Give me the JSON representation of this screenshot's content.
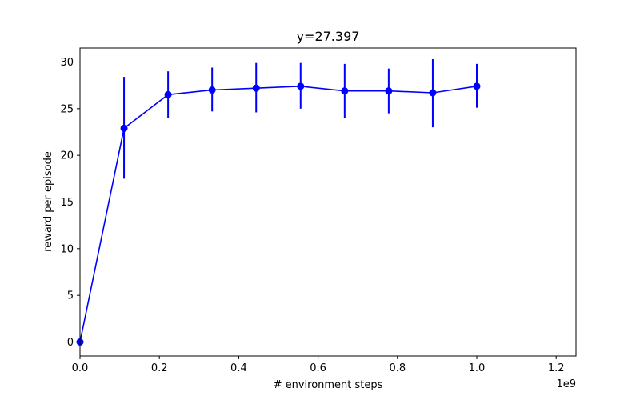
{
  "chart_data": {
    "type": "line",
    "title": "y=27.397",
    "xlabel": "# environment steps",
    "ylabel": "reward per episode",
    "x_offset_label": "1e9",
    "xlim": [
      0,
      1.25
    ],
    "ylim": [
      -1.5,
      31.5
    ],
    "x_ticks": [
      0.0,
      0.2,
      0.4,
      0.6,
      0.8,
      1.0,
      1.2
    ],
    "x_tick_labels": [
      "0.0",
      "0.2",
      "0.4",
      "0.6",
      "0.8",
      "1.0",
      "1.2"
    ],
    "y_ticks": [
      0,
      5,
      10,
      15,
      20,
      25,
      30
    ],
    "y_tick_labels": [
      "0",
      "5",
      "10",
      "15",
      "20",
      "25",
      "30"
    ],
    "grid": false,
    "color": "#0000ff",
    "series": [
      {
        "x": [
          0.0,
          0.111,
          0.222,
          0.333,
          0.444,
          0.556,
          0.667,
          0.778,
          0.889,
          1.0
        ],
        "y": [
          0.0,
          22.9,
          26.5,
          27.0,
          27.2,
          27.4,
          26.9,
          26.9,
          26.7,
          27.4
        ],
        "err_low": [
          0.0,
          17.5,
          24.0,
          24.7,
          24.6,
          25.0,
          24.0,
          24.5,
          23.0,
          25.1
        ],
        "err_high": [
          0.0,
          28.4,
          29.0,
          29.4,
          29.9,
          29.9,
          29.8,
          29.3,
          30.3,
          29.8
        ]
      }
    ]
  }
}
